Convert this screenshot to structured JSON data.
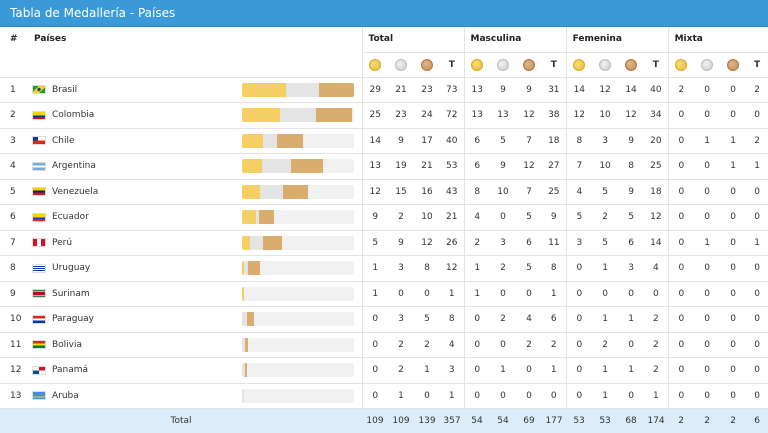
{
  "title": "Tabla de Medallería - Países",
  "headers": {
    "rank": "#",
    "country": "Países",
    "total": "Total",
    "men": "Masculina",
    "women": "Femenina",
    "mixed": "Mixta",
    "t": "T"
  },
  "colors": {
    "gold": "#f4cf63",
    "silver": "#e4e4e4",
    "bronze": "#d8ad6e",
    "header": "#3a9ad9",
    "footer": "#dcedf9"
  },
  "rows": [
    {
      "rank": "1",
      "name": "Brasil",
      "flag": "brazil",
      "total": [
        29,
        21,
        23,
        73
      ],
      "men": [
        13,
        9,
        9,
        31
      ],
      "women": [
        14,
        12,
        14,
        40
      ],
      "mixed": [
        2,
        0,
        0,
        2
      ]
    },
    {
      "rank": "2",
      "name": "Colombia",
      "flag": "colombia",
      "total": [
        25,
        23,
        24,
        72
      ],
      "men": [
        13,
        13,
        12,
        38
      ],
      "women": [
        12,
        10,
        12,
        34
      ],
      "mixed": [
        0,
        0,
        0,
        0
      ]
    },
    {
      "rank": "3",
      "name": "Chile",
      "flag": "chile",
      "total": [
        14,
        9,
        17,
        40
      ],
      "men": [
        6,
        5,
        7,
        18
      ],
      "women": [
        8,
        3,
        9,
        20
      ],
      "mixed": [
        0,
        1,
        1,
        2
      ]
    },
    {
      "rank": "4",
      "name": "Argentina",
      "flag": "argentina",
      "total": [
        13,
        19,
        21,
        53
      ],
      "men": [
        6,
        9,
        12,
        27
      ],
      "women": [
        7,
        10,
        8,
        25
      ],
      "mixed": [
        0,
        0,
        1,
        1
      ]
    },
    {
      "rank": "5",
      "name": "Venezuela",
      "flag": "venezuela",
      "total": [
        12,
        15,
        16,
        43
      ],
      "men": [
        8,
        10,
        7,
        25
      ],
      "women": [
        4,
        5,
        9,
        18
      ],
      "mixed": [
        0,
        0,
        0,
        0
      ]
    },
    {
      "rank": "6",
      "name": "Ecuador",
      "flag": "ecuador",
      "total": [
        9,
        2,
        10,
        21
      ],
      "men": [
        4,
        0,
        5,
        9
      ],
      "women": [
        5,
        2,
        5,
        12
      ],
      "mixed": [
        0,
        0,
        0,
        0
      ]
    },
    {
      "rank": "7",
      "name": "Perú",
      "flag": "peru",
      "total": [
        5,
        9,
        12,
        26
      ],
      "men": [
        2,
        3,
        6,
        11
      ],
      "women": [
        3,
        5,
        6,
        14
      ],
      "mixed": [
        0,
        1,
        0,
        1
      ]
    },
    {
      "rank": "8",
      "name": "Uruguay",
      "flag": "uruguay",
      "total": [
        1,
        3,
        8,
        12
      ],
      "men": [
        1,
        2,
        5,
        8
      ],
      "women": [
        0,
        1,
        3,
        4
      ],
      "mixed": [
        0,
        0,
        0,
        0
      ]
    },
    {
      "rank": "9",
      "name": "Surinam",
      "flag": "suriname",
      "total": [
        1,
        0,
        0,
        1
      ],
      "men": [
        1,
        0,
        0,
        1
      ],
      "women": [
        0,
        0,
        0,
        0
      ],
      "mixed": [
        0,
        0,
        0,
        0
      ]
    },
    {
      "rank": "10",
      "name": "Paraguay",
      "flag": "paraguay",
      "total": [
        0,
        3,
        5,
        8
      ],
      "men": [
        0,
        2,
        4,
        6
      ],
      "women": [
        0,
        1,
        1,
        2
      ],
      "mixed": [
        0,
        0,
        0,
        0
      ]
    },
    {
      "rank": "11",
      "name": "Bolivia",
      "flag": "bolivia",
      "total": [
        0,
        2,
        2,
        4
      ],
      "men": [
        0,
        0,
        2,
        2
      ],
      "women": [
        0,
        2,
        0,
        2
      ],
      "mixed": [
        0,
        0,
        0,
        0
      ]
    },
    {
      "rank": "12",
      "name": "Panamá",
      "flag": "panama",
      "total": [
        0,
        2,
        1,
        3
      ],
      "men": [
        0,
        1,
        0,
        1
      ],
      "women": [
        0,
        1,
        1,
        2
      ],
      "mixed": [
        0,
        0,
        0,
        0
      ]
    },
    {
      "rank": "13",
      "name": "Aruba",
      "flag": "aruba",
      "total": [
        0,
        1,
        0,
        1
      ],
      "men": [
        0,
        0,
        0,
        0
      ],
      "women": [
        0,
        1,
        0,
        1
      ],
      "mixed": [
        0,
        0,
        0,
        0
      ]
    }
  ],
  "footer": {
    "label": "Total",
    "total": [
      109,
      109,
      139,
      357
    ],
    "men": [
      54,
      54,
      69,
      177
    ],
    "women": [
      53,
      53,
      68,
      174
    ],
    "mixed": [
      2,
      2,
      2,
      6
    ]
  }
}
